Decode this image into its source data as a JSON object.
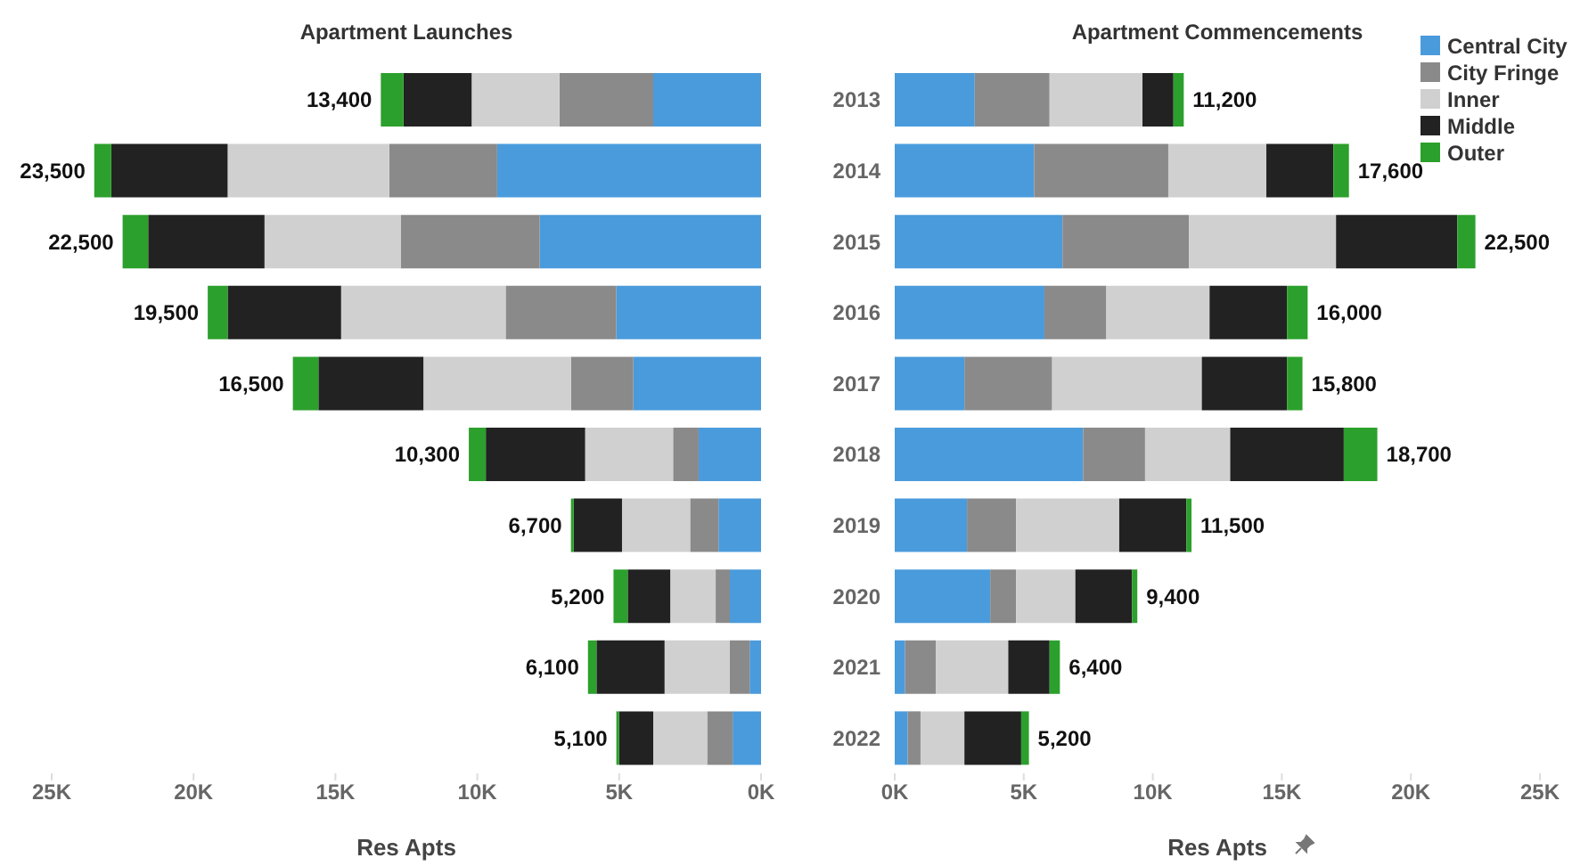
{
  "chart_data": [
    {
      "type": "bar",
      "orientation": "horizontal",
      "stacked": true,
      "title": "Apartment Launches",
      "xlabel": "Res Apts",
      "tick_labels": "x",
      "categories": [
        "2013",
        "2014",
        "2015",
        "2016",
        "2017",
        "2018",
        "2019",
        "2020",
        "2021",
        "2022"
      ],
      "xlim": [
        25000,
        0
      ],
      "xticks": [
        {
          "value": 25000,
          "label": "25K"
        },
        {
          "value": 20000,
          "label": "20K"
        },
        {
          "value": 15000,
          "label": "15K"
        },
        {
          "value": 10000,
          "label": "10K"
        },
        {
          "value": 5000,
          "label": "5K"
        },
        {
          "value": 0,
          "label": "0K"
        }
      ],
      "series": [
        {
          "color": "#4a9bdc",
          "values": [
            3800,
            9300,
            7800,
            5100,
            4500,
            2200,
            1500,
            1100,
            400,
            1000
          ]
        },
        {
          "color": "#8a8a8a",
          "values": [
            3300,
            3800,
            4900,
            3900,
            2200,
            900,
            1000,
            500,
            700,
            900
          ]
        },
        {
          "color": "#d0d0d0",
          "values": [
            3100,
            5700,
            4800,
            5800,
            5200,
            3100,
            2400,
            1600,
            2300,
            1900
          ]
        },
        {
          "color": "#222222",
          "values": [
            2400,
            4100,
            4100,
            4000,
            3700,
            3500,
            1700,
            1500,
            2400,
            1200
          ]
        },
        {
          "color": "#2ca02c",
          "values": [
            800,
            600,
            900,
            700,
            900,
            600,
            100,
            500,
            300,
            100
          ]
        }
      ],
      "totals": [
        "13,400",
        "23,500",
        "22,500",
        "19,500",
        "16,500",
        "10,300",
        "6,700",
        "5,200",
        "6,100",
        "5,100"
      ]
    },
    {
      "type": "bar",
      "orientation": "horizontal",
      "stacked": true,
      "title": "Apartment Commencements",
      "xlabel": "Res Apts",
      "legend": "top right",
      "categories": [
        "2013",
        "2014",
        "2015",
        "2016",
        "2017",
        "2018",
        "2019",
        "2020",
        "2021",
        "2022"
      ],
      "xlim": [
        0,
        25000
      ],
      "xticks": [
        {
          "value": 0,
          "label": "0K"
        },
        {
          "value": 5000,
          "label": "5K"
        },
        {
          "value": 10000,
          "label": "10K"
        },
        {
          "value": 15000,
          "label": "15K"
        },
        {
          "value": 20000,
          "label": "20K"
        },
        {
          "value": 25000,
          "label": "25K"
        }
      ],
      "series": [
        {
          "name": "Central City",
          "color": "#4a9bdc",
          "values": [
            3100,
            5400,
            6500,
            5800,
            2700,
            7300,
            2800,
            3700,
            400,
            500
          ]
        },
        {
          "name": "City Fringe",
          "color": "#8a8a8a",
          "values": [
            2900,
            5200,
            4900,
            2400,
            3400,
            2400,
            1900,
            1000,
            1200,
            500
          ]
        },
        {
          "name": "Inner",
          "color": "#d0d0d0",
          "values": [
            3600,
            3800,
            5700,
            4000,
            5800,
            3300,
            4000,
            2300,
            2800,
            1700
          ]
        },
        {
          "name": "Middle",
          "color": "#222222",
          "values": [
            1200,
            2600,
            4700,
            3000,
            3300,
            4400,
            2600,
            2200,
            1600,
            2200
          ]
        },
        {
          "name": "Outer",
          "color": "#2ca02c",
          "values": [
            400,
            600,
            700,
            800,
            600,
            1300,
            200,
            200,
            400,
            300
          ]
        }
      ],
      "totals": [
        "11,200",
        "17,600",
        "22,500",
        "16,000",
        "15,800",
        "18,700",
        "11,500",
        "9,400",
        "6,400",
        "5,200"
      ]
    }
  ]
}
